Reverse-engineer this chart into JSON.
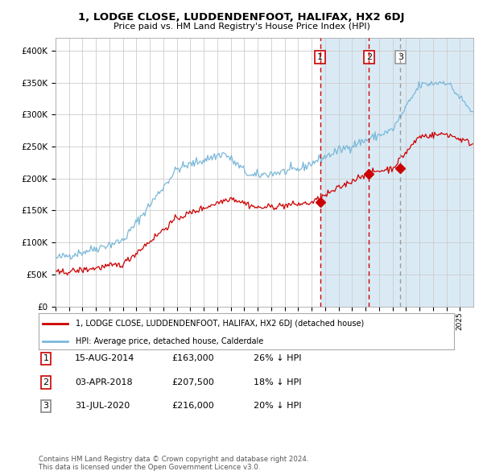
{
  "title": "1, LODGE CLOSE, LUDDENDENFOOT, HALIFAX, HX2 6DJ",
  "subtitle": "Price paid vs. HM Land Registry's House Price Index (HPI)",
  "legend_line1": "1, LODGE CLOSE, LUDDENDENFOOT, HALIFAX, HX2 6DJ (detached house)",
  "legend_line2": "HPI: Average price, detached house, Calderdale",
  "transactions": [
    {
      "num": 1,
      "date": "15-AUG-2014",
      "price": "£163,000",
      "pct": "26% ↓ HPI",
      "color": "#cc0000"
    },
    {
      "num": 2,
      "date": "03-APR-2018",
      "price": "£207,500",
      "pct": "18% ↓ HPI",
      "color": "#cc0000"
    },
    {
      "num": 3,
      "date": "31-JUL-2020",
      "price": "£216,000",
      "pct": "20% ↓ HPI",
      "color": "#888888"
    }
  ],
  "footer1": "Contains HM Land Registry data © Crown copyright and database right 2024.",
  "footer2": "This data is licensed under the Open Government Licence v3.0.",
  "ylim": [
    0,
    420000
  ],
  "yticks": [
    0,
    50000,
    100000,
    150000,
    200000,
    250000,
    300000,
    350000,
    400000
  ],
  "hpi_color": "#7ab8d9",
  "property_color": "#cc0000",
  "bg_color": "#ffffff",
  "shade_color": "#daeaf5",
  "grid_color": "#cccccc",
  "vline_red": "#cc0000",
  "vline_grey": "#999999",
  "t1_year": 2014.625,
  "t2_year": 2018.25,
  "t3_year": 2020.583,
  "p1": 163000,
  "p2": 207500,
  "p3": 216000
}
